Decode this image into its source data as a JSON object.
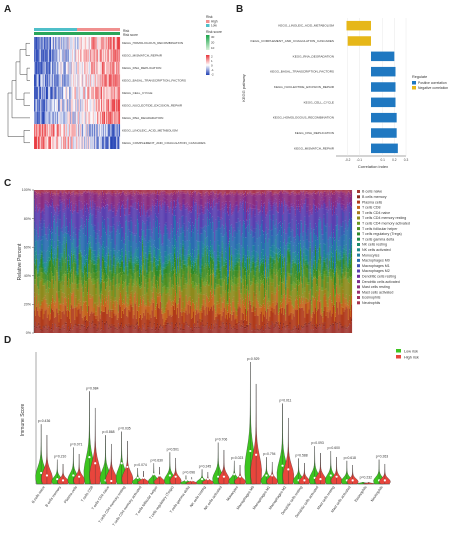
{
  "panel_letters": {
    "a": "A",
    "b": "B",
    "c": "C",
    "d": "D"
  },
  "colors": {
    "high_risk": "#e8453c",
    "low_risk": "#3cc51f",
    "heat_high": "#e8343a",
    "heat_low": "#1f3fb4",
    "heat_mid": "#ffffff",
    "risk_bar_low": "#4fbfc9",
    "risk_bar_high": "#f0908f",
    "positive": "#1f78c1",
    "negative": "#e6b719"
  },
  "chart_data": [
    {
      "panel": "A",
      "type": "heatmap",
      "rows": [
        "KEGG_HOMOLOGOUS_RECOMBINATION",
        "KEGG_MISMATCH_REPAIR",
        "KEGG_DNA_REPLICATION",
        "KEGG_BASAL_TRANSCRIPTION_FACTORS",
        "KEGG_CELL_CYCLE",
        "KEGG_NUCLEOTIDE_EXCISION_REPAIR",
        "KEGG_RNA_DEGRADATION",
        "KEGG_LINOLEIC_ACID_METABOLISM",
        "KEGG_COMPLEMENT_AND_COAGULATION_CASCADES"
      ],
      "row_trend": [
        1,
        1,
        1,
        1,
        1,
        1,
        1,
        -1,
        -1
      ],
      "annotation_labels": [
        "Risk",
        "Risk score"
      ],
      "legend_risk": {
        "title": "Risk",
        "items": [
          "High",
          "Low"
        ]
      },
      "legend_score": {
        "title": "Risk score",
        "ticks": [
          "30",
          "20",
          "10"
        ]
      },
      "legend_heat": {
        "title": "",
        "ticks": [
          "2",
          "1",
          "0",
          "-1",
          "-2"
        ]
      }
    },
    {
      "panel": "B",
      "type": "bar",
      "orientation": "horizontal",
      "ylabel": "KEGG pathway",
      "xlabel": "Correlation index",
      "categories": [
        "KEGG_LINOLEIC_ACID_METABOLISM",
        "KEGG_COMPLEMENT_AND_COAGULATION_CASCADES",
        "KEGG_RNA_DEGRADATION",
        "KEGG_BASAL_TRANSCRIPTION_FACTORS",
        "KEGG_NUCLEOTIDE_EXCISION_REPAIR",
        "KEGG_CELL_CYCLE",
        "KEGG_HOMOLOGOUS_RECOMBINATION",
        "KEGG_DNA_REPLICATION",
        "KEGG_MISMATCH_REPAIR"
      ],
      "values": [
        -0.21,
        -0.2,
        0.2,
        0.21,
        0.21,
        0.21,
        0.22,
        0.22,
        0.23
      ],
      "xlim": [
        -0.3,
        0.3
      ],
      "xticks": [
        "-0.2",
        "-0.1",
        "0.1",
        "0.2",
        "0.3"
      ],
      "legend": {
        "title": "Regulate",
        "items": [
          "Positive correlation",
          "Negative correlation"
        ]
      }
    },
    {
      "panel": "C",
      "type": "bar",
      "stacked": true,
      "ylabel": "Relative Percent",
      "yticks": [
        "0%",
        "20%",
        "40%",
        "60%",
        "80%",
        "100%"
      ],
      "series": [
        {
          "name": "B cells naive",
          "color": "#a33a33",
          "mean": 0.04
        },
        {
          "name": "B cells memory",
          "color": "#8a2a1e",
          "mean": 0.01
        },
        {
          "name": "Plasma cells",
          "color": "#b03a1a",
          "mean": 0.09
        },
        {
          "name": "T cells CD8",
          "color": "#c5641c",
          "mean": 0.07
        },
        {
          "name": "T cells CD4 naive",
          "color": "#a87a1a",
          "mean": 0.02
        },
        {
          "name": "T cells CD4 memory resting",
          "color": "#8d8a1c",
          "mean": 0.1
        },
        {
          "name": "T cells CD4 memory activated",
          "color": "#6a9a22",
          "mean": 0.03
        },
        {
          "name": "T cells follicular helper",
          "color": "#4d8f23",
          "mean": 0.06
        },
        {
          "name": "T cells regulatory (Tregs)",
          "color": "#2e8a2a",
          "mean": 0.05
        },
        {
          "name": "T cells gamma delta",
          "color": "#1f8a4a",
          "mean": 0.01
        },
        {
          "name": "NK cells resting",
          "color": "#1c8c6e",
          "mean": 0.02
        },
        {
          "name": "NK cells activated",
          "color": "#1c8a8a",
          "mean": 0.03
        },
        {
          "name": "Monocytes",
          "color": "#1f7fa0",
          "mean": 0.05
        },
        {
          "name": "Macrophages M0",
          "color": "#2a6cb0",
          "mean": 0.12
        },
        {
          "name": "Macrophages M1",
          "color": "#3f52b3",
          "mean": 0.05
        },
        {
          "name": "Macrophages M2",
          "color": "#5a3fb0",
          "mean": 0.12
        },
        {
          "name": "Dendritic cells resting",
          "color": "#6e2fa0",
          "mean": 0.01
        },
        {
          "name": "Dendritic cells activated",
          "color": "#7d2a90",
          "mean": 0.03
        },
        {
          "name": "Mast cells resting",
          "color": "#8a2d80",
          "mean": 0.06
        },
        {
          "name": "Mast cells activated",
          "color": "#9a2f70",
          "mean": 0.01
        },
        {
          "name": "Eosinophils",
          "color": "#a13360",
          "mean": 0.005
        },
        {
          "name": "Neutrophils",
          "color": "#a83750",
          "mean": 0.015
        }
      ]
    },
    {
      "panel": "D",
      "type": "violin",
      "ylabel": "Immune Score",
      "legend": {
        "items": [
          "Low risk",
          "High risk"
        ]
      },
      "categories": [
        "B cells naive",
        "B cells memory",
        "Plasma cells",
        "T cells CD8",
        "T cells CD4 naive",
        "T cells CD4 memory resting",
        "T cells CD4 memory activated",
        "T cells follicular helper",
        "T cells regulatory (Tregs)",
        "T cells gamma delta",
        "NK cells resting",
        "NK cells activated",
        "Monocytes",
        "Macrophages M0",
        "Macrophages M1",
        "Macrophages M2",
        "Dendritic cells resting",
        "Dendritic cells activated",
        "Mast cells resting",
        "Mast cells activated",
        "Eosinophils",
        "Neutrophils"
      ],
      "pvalues": [
        "p=0.436",
        "p=0.210",
        "p=0.071",
        "p=0.984",
        "p=0.868",
        "p=0.035",
        "p=0.074",
        "p=0.630",
        "p=0.501",
        "p=0.096",
        "p=0.245",
        "p=0.706",
        "p=0.023",
        "p=0.929",
        "p=0.794",
        "p=0.011",
        "p=0.588",
        "p=0.093",
        "p=0.600",
        "p=0.618",
        "p=0.232",
        "p=0.263"
      ],
      "peaks": [
        0.49,
        0.2,
        0.3,
        0.76,
        0.4,
        0.43,
        0.13,
        0.17,
        0.26,
        0.07,
        0.12,
        0.34,
        0.19,
        1.0,
        0.22,
        0.66,
        0.21,
        0.31,
        0.27,
        0.19,
        0.03,
        0.2
      ],
      "medians_low": [
        0.07,
        0.02,
        0.05,
        0.2,
        0.01,
        0.15,
        0.03,
        0.06,
        0.05,
        0.01,
        0.02,
        0.04,
        0.06,
        0.25,
        0.05,
        0.13,
        0.01,
        0.03,
        0.05,
        0.01,
        0.0,
        0.01
      ],
      "medians_high": [
        0.05,
        0.01,
        0.04,
        0.15,
        0.0,
        0.12,
        0.03,
        0.05,
        0.04,
        0.01,
        0.02,
        0.04,
        0.04,
        0.22,
        0.05,
        0.1,
        0.01,
        0.02,
        0.04,
        0.01,
        0.0,
        0.01
      ]
    }
  ]
}
